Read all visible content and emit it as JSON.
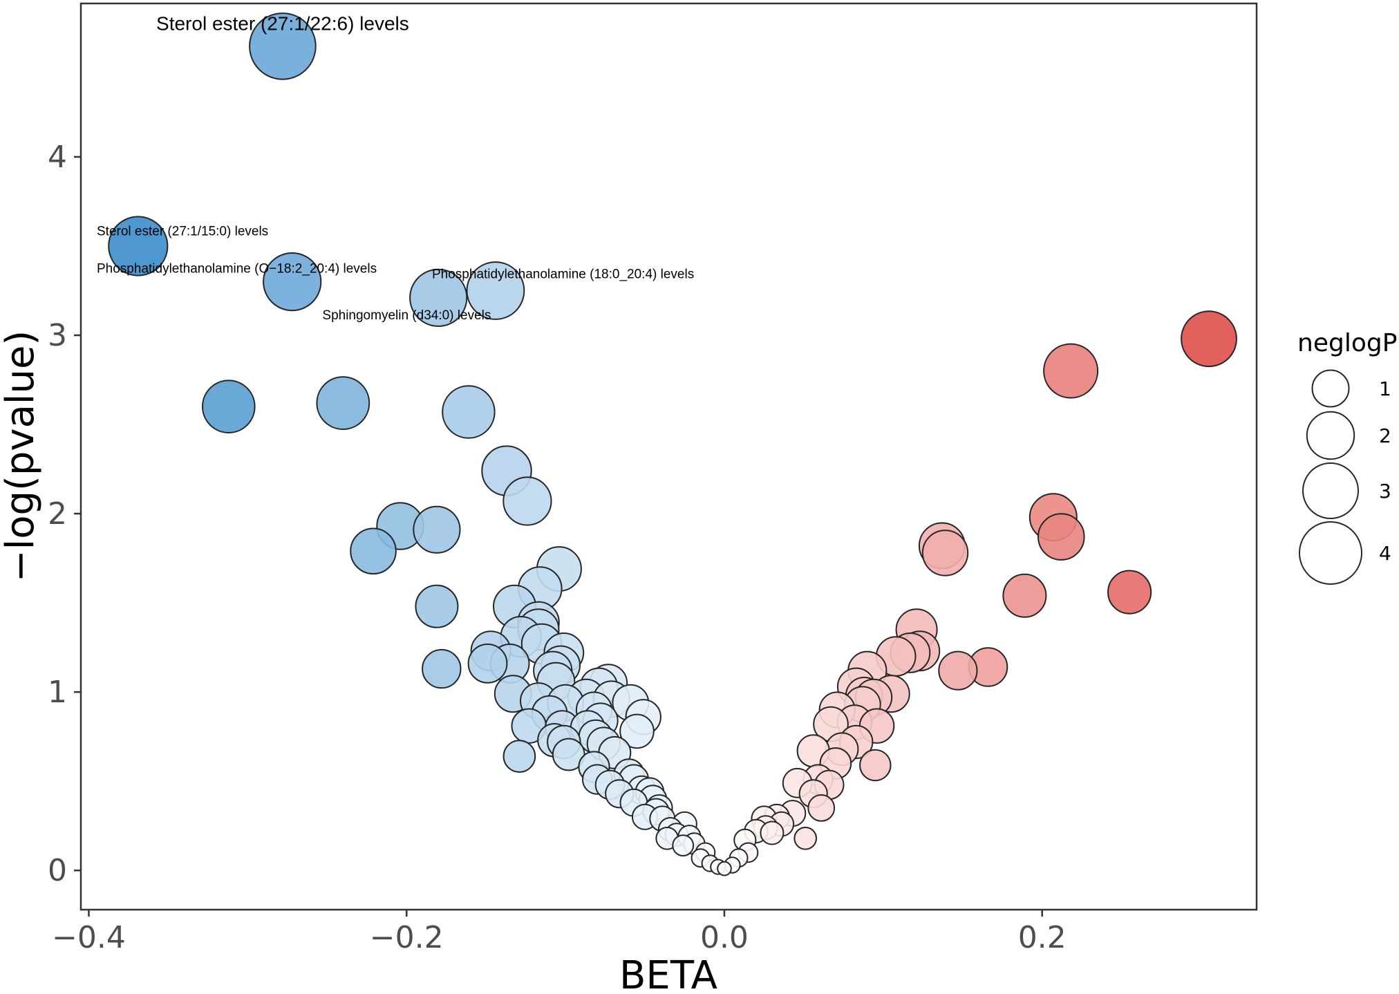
{
  "chart_data": {
    "type": "scatter",
    "title": "",
    "xlabel": "BETA",
    "ylabel": "−log(pvalue)",
    "xlim": [
      -0.405,
      0.335
    ],
    "ylim": [
      -0.22,
      4.86
    ],
    "x_ticks": [
      -0.4,
      -0.2,
      0.0,
      0.2
    ],
    "x_tick_labels": [
      "−0.4",
      "−0.2",
      "0.0",
      "0.2"
    ],
    "y_ticks": [
      0,
      1,
      2,
      3,
      4
    ],
    "y_tick_labels": [
      "0",
      "1",
      "2",
      "3",
      "4"
    ],
    "grid": false,
    "size_variable": "neglogP",
    "color_variable": "BETA",
    "color_scale": {
      "negative": "#3a8ccb",
      "zero": "#ffffff",
      "positive": "#e0504a"
    },
    "legend": {
      "title": "neglogP",
      "position": "right",
      "entries": [
        {
          "label": "1",
          "value": 1
        },
        {
          "label": "2",
          "value": 2
        },
        {
          "label": "3",
          "value": 3
        },
        {
          "label": "4",
          "value": 4
        }
      ]
    },
    "annotations": [
      {
        "text": "Sterol ester (27:1/22:6) levels",
        "x": -0.278,
        "y": 4.71,
        "anchor": "middle",
        "size": "large"
      },
      {
        "text": "Sterol ester (27:1/15:0) levels",
        "x": -0.395,
        "y": 3.56,
        "anchor": "start",
        "size": "small"
      },
      {
        "text": "Phosphatidylethanolamine (O−18:2_20:4) levels",
        "x": -0.395,
        "y": 3.35,
        "anchor": "start",
        "size": "small"
      },
      {
        "text": "Phosphatidylethanolamine (18:0_20:4) levels",
        "x": -0.184,
        "y": 3.32,
        "anchor": "start",
        "size": "small"
      },
      {
        "text": "Sphingomyelin (d34:0) levels",
        "x": -0.253,
        "y": 3.09,
        "anchor": "start",
        "size": "small"
      }
    ],
    "points": [
      {
        "x": -0.278,
        "y": 4.62
      },
      {
        "x": -0.369,
        "y": 3.5
      },
      {
        "x": -0.272,
        "y": 3.3
      },
      {
        "x": -0.18,
        "y": 3.21
      },
      {
        "x": -0.144,
        "y": 3.25
      },
      {
        "x": -0.312,
        "y": 2.6
      },
      {
        "x": -0.24,
        "y": 2.62
      },
      {
        "x": -0.161,
        "y": 2.57
      },
      {
        "x": -0.137,
        "y": 2.24
      },
      {
        "x": -0.124,
        "y": 2.07
      },
      {
        "x": -0.204,
        "y": 1.93
      },
      {
        "x": -0.181,
        "y": 1.91
      },
      {
        "x": -0.221,
        "y": 1.79
      },
      {
        "x": -0.181,
        "y": 1.48
      },
      {
        "x": -0.178,
        "y": 1.13
      },
      {
        "x": -0.104,
        "y": 1.69
      },
      {
        "x": -0.116,
        "y": 1.58
      },
      {
        "x": -0.132,
        "y": 1.48
      },
      {
        "x": -0.117,
        "y": 1.39
      },
      {
        "x": -0.117,
        "y": 1.35
      },
      {
        "x": -0.128,
        "y": 1.31
      },
      {
        "x": -0.115,
        "y": 1.27
      },
      {
        "x": -0.147,
        "y": 1.23
      },
      {
        "x": -0.135,
        "y": 1.16
      },
      {
        "x": -0.149,
        "y": 1.16
      },
      {
        "x": -0.101,
        "y": 1.22
      },
      {
        "x": -0.103,
        "y": 1.15
      },
      {
        "x": -0.108,
        "y": 1.12
      },
      {
        "x": -0.106,
        "y": 1.06
      },
      {
        "x": -0.133,
        "y": 0.99
      },
      {
        "x": -0.117,
        "y": 0.95
      },
      {
        "x": -0.11,
        "y": 0.88
      },
      {
        "x": -0.1,
        "y": 0.94
      },
      {
        "x": -0.123,
        "y": 0.81
      },
      {
        "x": -0.102,
        "y": 0.8
      },
      {
        "x": -0.107,
        "y": 0.73
      },
      {
        "x": -0.101,
        "y": 0.72
      },
      {
        "x": -0.098,
        "y": 0.65
      },
      {
        "x": -0.129,
        "y": 0.64
      },
      {
        "x": -0.087,
        "y": 0.97
      },
      {
        "x": -0.079,
        "y": 1.03
      },
      {
        "x": -0.073,
        "y": 1.05
      },
      {
        "x": -0.071,
        "y": 0.96
      },
      {
        "x": -0.082,
        "y": 0.9
      },
      {
        "x": -0.078,
        "y": 0.84
      },
      {
        "x": -0.086,
        "y": 0.8
      },
      {
        "x": -0.081,
        "y": 0.75
      },
      {
        "x": -0.076,
        "y": 0.71
      },
      {
        "x": -0.059,
        "y": 0.94
      },
      {
        "x": -0.051,
        "y": 0.86
      },
      {
        "x": -0.055,
        "y": 0.78
      },
      {
        "x": -0.069,
        "y": 0.66
      },
      {
        "x": -0.082,
        "y": 0.58
      },
      {
        "x": -0.08,
        "y": 0.51
      },
      {
        "x": -0.072,
        "y": 0.48
      },
      {
        "x": -0.06,
        "y": 0.54
      },
      {
        "x": -0.057,
        "y": 0.51
      },
      {
        "x": -0.066,
        "y": 0.43
      },
      {
        "x": -0.052,
        "y": 0.45
      },
      {
        "x": -0.047,
        "y": 0.44
      },
      {
        "x": -0.057,
        "y": 0.38
      },
      {
        "x": -0.045,
        "y": 0.4
      },
      {
        "x": -0.041,
        "y": 0.35
      },
      {
        "x": -0.05,
        "y": 0.3
      },
      {
        "x": -0.039,
        "y": 0.29
      },
      {
        "x": -0.043,
        "y": 0.33
      },
      {
        "x": -0.034,
        "y": 0.23
      },
      {
        "x": -0.03,
        "y": 0.2
      },
      {
        "x": -0.036,
        "y": 0.18
      },
      {
        "x": -0.025,
        "y": 0.26
      },
      {
        "x": -0.022,
        "y": 0.19
      },
      {
        "x": -0.019,
        "y": 0.15
      },
      {
        "x": -0.026,
        "y": 0.14
      },
      {
        "x": -0.012,
        "y": 0.1
      },
      {
        "x": -0.015,
        "y": 0.07
      },
      {
        "x": -0.009,
        "y": 0.04
      },
      {
        "x": -0.004,
        "y": 0.02
      },
      {
        "x": 0.0,
        "y": 0.01
      },
      {
        "x": 0.005,
        "y": 0.03
      },
      {
        "x": 0.009,
        "y": 0.07
      },
      {
        "x": 0.015,
        "y": 0.1
      },
      {
        "x": 0.013,
        "y": 0.17
      },
      {
        "x": 0.02,
        "y": 0.22
      },
      {
        "x": 0.026,
        "y": 0.24
      },
      {
        "x": 0.025,
        "y": 0.29
      },
      {
        "x": 0.03,
        "y": 0.21
      },
      {
        "x": 0.033,
        "y": 0.3
      },
      {
        "x": 0.036,
        "y": 0.26
      },
      {
        "x": 0.043,
        "y": 0.32
      },
      {
        "x": 0.051,
        "y": 0.18
      },
      {
        "x": 0.046,
        "y": 0.49
      },
      {
        "x": 0.056,
        "y": 0.43
      },
      {
        "x": 0.059,
        "y": 0.51
      },
      {
        "x": 0.061,
        "y": 0.35
      },
      {
        "x": 0.066,
        "y": 0.48
      },
      {
        "x": 0.056,
        "y": 0.67
      },
      {
        "x": 0.067,
        "y": 0.82
      },
      {
        "x": 0.071,
        "y": 0.9
      },
      {
        "x": 0.074,
        "y": 0.68
      },
      {
        "x": 0.07,
        "y": 0.6
      },
      {
        "x": 0.083,
        "y": 0.72
      },
      {
        "x": 0.082,
        "y": 0.83
      },
      {
        "x": 0.087,
        "y": 0.93
      },
      {
        "x": 0.083,
        "y": 1.03
      },
      {
        "x": 0.09,
        "y": 1.12
      },
      {
        "x": 0.088,
        "y": 0.98
      },
      {
        "x": 0.094,
        "y": 0.97
      },
      {
        "x": 0.096,
        "y": 0.81
      },
      {
        "x": 0.095,
        "y": 0.59
      },
      {
        "x": 0.105,
        "y": 0.99
      },
      {
        "x": 0.108,
        "y": 1.2
      },
      {
        "x": 0.117,
        "y": 1.22
      },
      {
        "x": 0.121,
        "y": 1.35
      },
      {
        "x": 0.123,
        "y": 1.23
      },
      {
        "x": 0.137,
        "y": 1.82
      },
      {
        "x": 0.139,
        "y": 1.78
      },
      {
        "x": 0.147,
        "y": 1.12
      },
      {
        "x": 0.166,
        "y": 1.14
      },
      {
        "x": 0.189,
        "y": 1.54
      },
      {
        "x": 0.207,
        "y": 1.98
      },
      {
        "x": 0.212,
        "y": 1.87
      },
      {
        "x": 0.218,
        "y": 2.8
      },
      {
        "x": 0.255,
        "y": 1.56
      },
      {
        "x": 0.305,
        "y": 2.98
      }
    ]
  }
}
